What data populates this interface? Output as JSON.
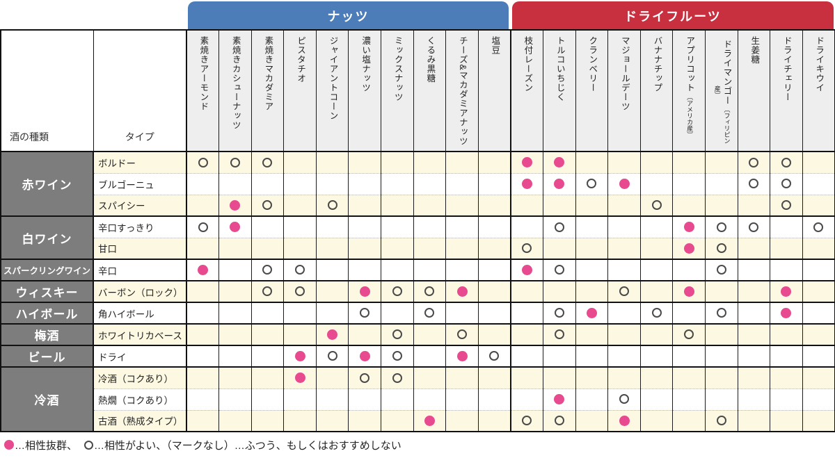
{
  "banners": {
    "nuts": {
      "label": "ナッツ",
      "color": "#4d7db8"
    },
    "dried_fruits": {
      "label": "ドライフルーツ",
      "color": "#c82f3f"
    }
  },
  "header": {
    "alcohol_col": "酒の種類",
    "type_col": "タイプ"
  },
  "legend": {
    "best_label": "…相性抜群、",
    "good_label": "…相性がよい、（マークなし）…ふつう、もしくはおすすめしない"
  },
  "colors": {
    "best_mark": "#e84a90",
    "good_mark_outline": "#4a4a4a",
    "cream_row": "#fdf8e1",
    "group_cell": "#7d7d7d",
    "column_header_bg": "#eeeeee"
  },
  "chart_data": {
    "type": "table",
    "column_groups": [
      {
        "label": "ナッツ",
        "span": 10
      },
      {
        "label": "ドライフルーツ",
        "span": 10
      }
    ],
    "columns": [
      {
        "label": "素焼きアーモンド"
      },
      {
        "label": "素焼きカシューナッツ"
      },
      {
        "label": "素焼きマカダミア"
      },
      {
        "label": "ピスタチオ"
      },
      {
        "label": "ジャイアントコーン"
      },
      {
        "label": "濃い塩ナッツ"
      },
      {
        "label": "ミックスナッツ"
      },
      {
        "label": "くるみ黒糖"
      },
      {
        "label": "チーズ&マカダミアナッツ"
      },
      {
        "label": "塩豆"
      },
      {
        "label": "枝付レーズン"
      },
      {
        "label": "トルコいちじく"
      },
      {
        "label": "クランベリー"
      },
      {
        "label": "マジョールデーツ"
      },
      {
        "label": "バナナチップ"
      },
      {
        "label": "アプリコット",
        "note": "〔アメリカ産〕"
      },
      {
        "label": "ドライマンゴー",
        "note": "〔フィリピン産〕"
      },
      {
        "label": "生姜糖"
      },
      {
        "label": "ドライチェリー"
      },
      {
        "label": "ドライキウイ"
      }
    ],
    "mark_legend": {
      "b": "相性抜群",
      "g": "相性がよい",
      "": "ふつう、もしくはおすすめしない"
    },
    "row_groups": [
      {
        "label": "赤ワイン",
        "small": false,
        "rows": [
          {
            "type": "ボルドー",
            "marks": [
              "g",
              "g",
              "g",
              "",
              "",
              "",
              "",
              "",
              "",
              "",
              "b",
              "b",
              "",
              "",
              "",
              "",
              "",
              "g",
              "g",
              ""
            ]
          },
          {
            "type": "ブルゴーニュ",
            "marks": [
              "",
              "",
              "",
              "",
              "",
              "",
              "",
              "",
              "",
              "",
              "b",
              "b",
              "g",
              "b",
              "",
              "",
              "",
              "g",
              "g",
              ""
            ]
          },
          {
            "type": "スパイシー",
            "marks": [
              "",
              "b",
              "g",
              "",
              "g",
              "",
              "",
              "",
              "",
              "",
              "",
              "",
              "",
              "",
              "g",
              "",
              "",
              "",
              "g",
              ""
            ]
          }
        ]
      },
      {
        "label": "白ワイン",
        "small": false,
        "rows": [
          {
            "type": "辛口すっきり",
            "marks": [
              "g",
              "b",
              "",
              "",
              "",
              "",
              "",
              "",
              "",
              "",
              "",
              "g",
              "",
              "",
              "",
              "b",
              "g",
              "g",
              "",
              "g"
            ]
          },
          {
            "type": "甘口",
            "marks": [
              "",
              "",
              "",
              "",
              "",
              "",
              "",
              "",
              "",
              "",
              "g",
              "",
              "",
              "",
              "",
              "b",
              "g",
              "",
              "",
              ""
            ]
          }
        ]
      },
      {
        "label": "スパークリングワイン",
        "small": true,
        "rows": [
          {
            "type": "辛口",
            "marks": [
              "b",
              "",
              "g",
              "g",
              "",
              "",
              "",
              "",
              "",
              "",
              "b",
              "g",
              "",
              "",
              "",
              "",
              "g",
              "",
              "",
              ""
            ]
          }
        ]
      },
      {
        "label": "ウィスキー",
        "small": false,
        "rows": [
          {
            "type": "バーボン（ロック）",
            "marks": [
              "",
              "",
              "g",
              "g",
              "",
              "b",
              "g",
              "g",
              "b",
              "",
              "",
              "",
              "",
              "g",
              "",
              "b",
              "",
              "",
              "b",
              ""
            ]
          }
        ]
      },
      {
        "label": "ハイボール",
        "small": false,
        "rows": [
          {
            "type": "角ハイボール",
            "marks": [
              "",
              "",
              "",
              "",
              "",
              "g",
              "",
              "g",
              "",
              "",
              "",
              "g",
              "b",
              "",
              "g",
              "",
              "g",
              "",
              "b",
              ""
            ]
          }
        ]
      },
      {
        "label": "梅酒",
        "small": false,
        "rows": [
          {
            "type": "ホワイトリカベース",
            "marks": [
              "",
              "",
              "",
              "",
              "b",
              "",
              "g",
              "",
              "g",
              "",
              "",
              "g",
              "",
              "",
              "",
              "g",
              "",
              "",
              "",
              ""
            ]
          }
        ]
      },
      {
        "label": "ビール",
        "small": false,
        "rows": [
          {
            "type": "ドライ",
            "marks": [
              "",
              "",
              "",
              "b",
              "g",
              "b",
              "g",
              "",
              "b",
              "g",
              "",
              "",
              "",
              "",
              "",
              "",
              "",
              "",
              "",
              ""
            ]
          }
        ]
      },
      {
        "label": "冷酒",
        "small": false,
        "rows": [
          {
            "type": "冷酒（コクあり）",
            "marks": [
              "",
              "",
              "",
              "b",
              "",
              "g",
              "g",
              "",
              "",
              "",
              "",
              "",
              "",
              "",
              "",
              "",
              "",
              "",
              "",
              ""
            ]
          },
          {
            "type": "熱燗（コクあり）",
            "marks": [
              "",
              "",
              "",
              "",
              "",
              "",
              "",
              "",
              "",
              "",
              "",
              "b",
              "",
              "g",
              "",
              "",
              "",
              "",
              "",
              ""
            ]
          },
          {
            "type": "古酒（熟成タイプ）",
            "marks": [
              "",
              "",
              "",
              "",
              "",
              "",
              "",
              "b",
              "",
              "",
              "g",
              "g",
              "",
              "b",
              "",
              "",
              "g",
              "",
              "",
              ""
            ]
          }
        ]
      }
    ]
  }
}
